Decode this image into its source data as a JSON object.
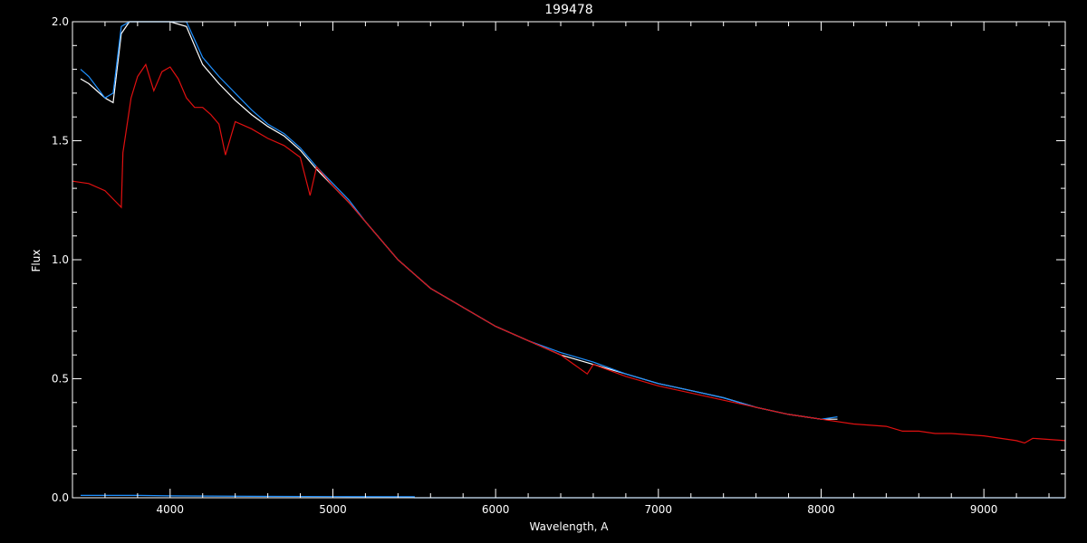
{
  "chart_data": {
    "type": "line",
    "title": "199478",
    "xlabel": "Wavelength, A",
    "ylabel": "Flux",
    "xlim": [
      3400,
      9500
    ],
    "ylim": [
      0.0,
      2.0
    ],
    "x_ticks": [
      4000,
      5000,
      6000,
      7000,
      8000,
      9000
    ],
    "y_ticks": [
      0.0,
      0.5,
      1.0,
      1.5,
      2.0
    ],
    "x_tick_labels": [
      "4000",
      "5000",
      "6000",
      "7000",
      "8000",
      "9000"
    ],
    "y_tick_labels": [
      "0.0",
      "0.5",
      "1.0",
      "1.5",
      "2.0"
    ],
    "x_minor_step": 200,
    "y_minor_step": 0.1,
    "grid": false,
    "legend": "none",
    "background": "#000000",
    "axis_color": "#ffffff",
    "series": [
      {
        "color": "#ffffff",
        "x": [
          3450,
          3500,
          3600,
          3650,
          3700,
          3750,
          3800,
          3900,
          4000,
          4100,
          4200,
          4300,
          4400,
          4500,
          4600,
          4700,
          4800,
          4900,
          5000,
          5100,
          5200,
          5300,
          5400,
          5500,
          5600,
          5800,
          6000,
          6200,
          6400,
          6600,
          6800,
          7000,
          7200,
          7400,
          7600,
          7800,
          8000,
          8100
        ],
        "y": [
          1.76,
          1.74,
          1.68,
          1.66,
          1.95,
          2.0,
          2.0,
          2.0,
          2.0,
          1.98,
          1.82,
          1.74,
          1.67,
          1.61,
          1.56,
          1.52,
          1.46,
          1.38,
          1.31,
          1.24,
          1.16,
          1.08,
          1.0,
          0.94,
          0.88,
          0.8,
          0.72,
          0.66,
          0.6,
          0.56,
          0.52,
          0.48,
          0.45,
          0.42,
          0.38,
          0.35,
          0.33,
          0.33
        ]
      },
      {
        "color": "#1e90ff",
        "x": [
          3450,
          3500,
          3600,
          3650,
          3700,
          3750,
          3800,
          3900,
          4000,
          4100,
          4200,
          4300,
          4400,
          4500,
          4600,
          4700,
          4800,
          4900,
          5000,
          5100,
          5200,
          5300,
          5400,
          5500,
          5600,
          5800,
          6000,
          6200,
          6400,
          6600,
          6800,
          7000,
          7200,
          7400,
          7600,
          7800,
          8000,
          8100
        ],
        "y": [
          1.8,
          1.77,
          1.68,
          1.7,
          1.98,
          2.0,
          2.0,
          2.0,
          2.0,
          2.0,
          1.85,
          1.77,
          1.7,
          1.63,
          1.57,
          1.53,
          1.47,
          1.39,
          1.32,
          1.25,
          1.16,
          1.08,
          1.0,
          0.94,
          0.88,
          0.8,
          0.72,
          0.66,
          0.61,
          0.57,
          0.52,
          0.48,
          0.45,
          0.42,
          0.38,
          0.35,
          0.33,
          0.34
        ]
      },
      {
        "color": "#e01010",
        "x": [
          3400,
          3500,
          3600,
          3700,
          3710,
          3760,
          3800,
          3850,
          3900,
          3950,
          4000,
          4050,
          4100,
          4150,
          4200,
          4250,
          4300,
          4340,
          4400,
          4500,
          4600,
          4700,
          4800,
          4860,
          4900,
          5000,
          5100,
          5200,
          5300,
          5400,
          5500,
          5600,
          5800,
          6000,
          6200,
          6400,
          6563,
          6600,
          6800,
          7000,
          7200,
          7400,
          7600,
          7800,
          8000,
          8200,
          8400,
          8500,
          8600,
          8700,
          8800,
          9000,
          9200,
          9250,
          9300,
          9500
        ],
        "y": [
          1.33,
          1.32,
          1.29,
          1.22,
          1.45,
          1.68,
          1.77,
          1.82,
          1.71,
          1.79,
          1.81,
          1.76,
          1.68,
          1.64,
          1.64,
          1.61,
          1.57,
          1.44,
          1.58,
          1.55,
          1.51,
          1.48,
          1.43,
          1.27,
          1.39,
          1.31,
          1.24,
          1.16,
          1.08,
          1.0,
          0.94,
          0.88,
          0.8,
          0.72,
          0.66,
          0.6,
          0.52,
          0.56,
          0.51,
          0.47,
          0.44,
          0.41,
          0.38,
          0.35,
          0.33,
          0.31,
          0.3,
          0.28,
          0.28,
          0.27,
          0.27,
          0.26,
          0.24,
          0.23,
          0.25,
          0.24
        ]
      },
      {
        "color": "#1e90ff",
        "x": [
          3450,
          3600,
          3800,
          4000,
          4500,
          5000,
          5500,
          5500,
          6000,
          7000,
          8000,
          9000,
          9500
        ],
        "y": [
          0.01,
          0.01,
          0.01,
          0.008,
          0.006,
          0.005,
          0.004,
          0.0,
          0.0,
          0.0,
          0.0,
          0.0,
          0.0
        ]
      }
    ]
  }
}
